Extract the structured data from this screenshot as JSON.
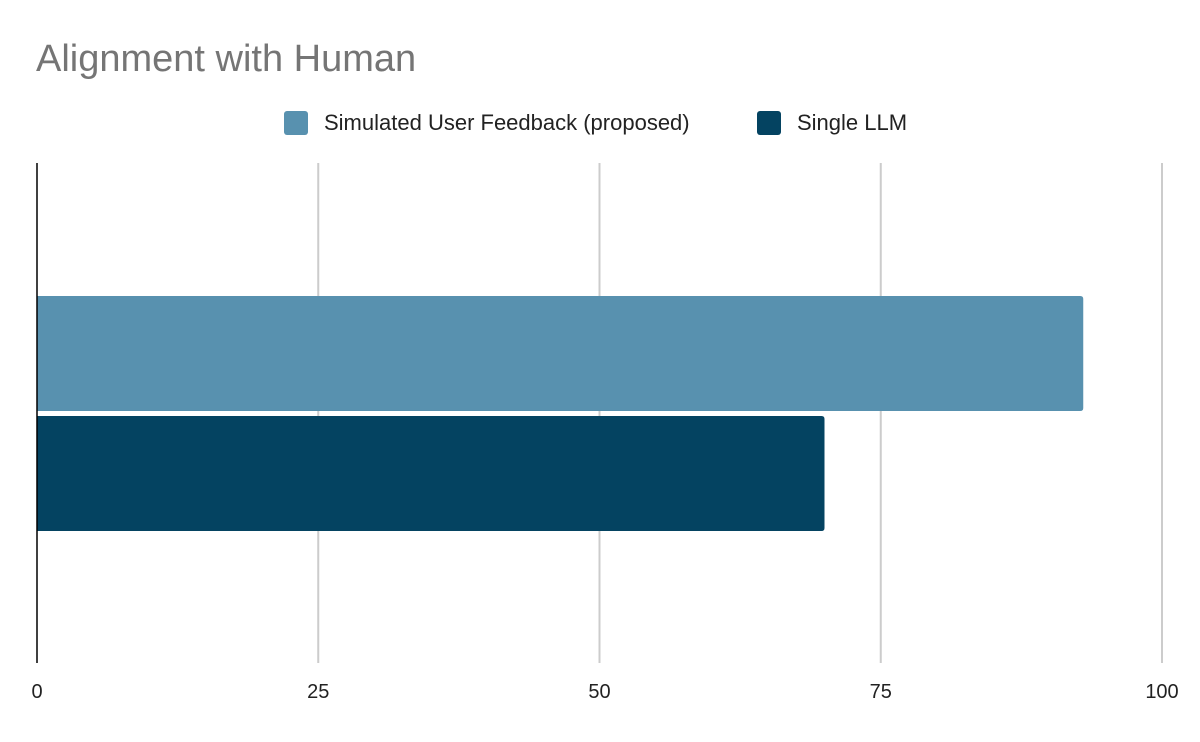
{
  "chart_data": {
    "type": "bar",
    "orientation": "horizontal",
    "title": "Alignment with Human",
    "categories": [
      ""
    ],
    "series": [
      {
        "name": "Simulated User Feedback (proposed)",
        "values": [
          93
        ],
        "color": "#5891af"
      },
      {
        "name": "Single LLM",
        "values": [
          70
        ],
        "color": "#044361"
      }
    ],
    "xlim": [
      0,
      100
    ],
    "xticks": [
      "0",
      "25",
      "50",
      "75",
      "100"
    ],
    "xlabel": "",
    "ylabel": "",
    "grid": "vertical",
    "legend_position": "top-center"
  },
  "colors": {
    "title": "#757575",
    "grid": "#cccccc",
    "axis": "#000000",
    "text": "#222222"
  }
}
